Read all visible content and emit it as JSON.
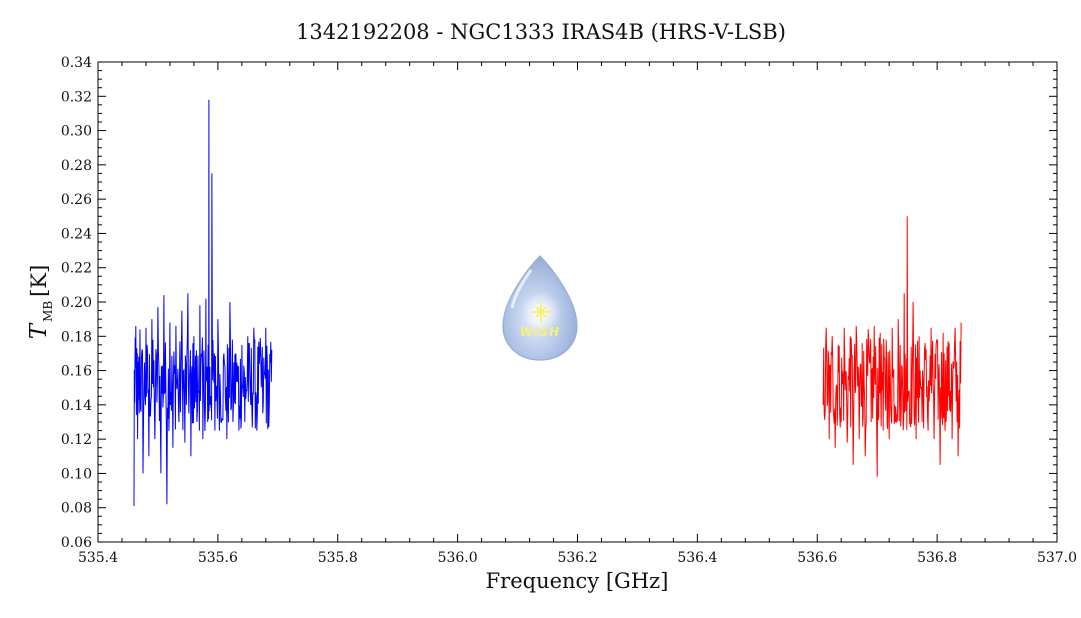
{
  "chart_data": {
    "type": "line",
    "title": "1342192208 - NGC1333 IRAS4B (HRS-V-LSB)",
    "xlabel": "Frequency [GHz]",
    "ylabel_main": "T",
    "ylabel_sub": "MB",
    "ylabel_unit": "[K]",
    "xlim": [
      535.4,
      537.0
    ],
    "ylim": [
      0.06,
      0.34
    ],
    "xticks": [
      "535.4",
      "535.6",
      "535.8",
      "536.0",
      "536.2",
      "536.4",
      "536.6",
      "536.8",
      "537.0"
    ],
    "yticks": [
      "0.06",
      "0.08",
      "0.10",
      "0.12",
      "0.14",
      "0.16",
      "0.18",
      "0.20",
      "0.22",
      "0.24",
      "0.26",
      "0.28",
      "0.30",
      "0.32",
      "0.34"
    ],
    "grid": false,
    "series": [
      {
        "color": "#0000ff",
        "x": [
          535.46,
          535.463,
          535.466,
          535.47,
          535.475,
          535.48,
          535.485,
          535.49,
          535.495,
          535.5,
          535.505,
          535.51,
          535.515,
          535.52,
          535.525,
          535.53,
          535.535,
          535.54,
          535.545,
          535.55,
          535.555,
          535.56,
          535.565,
          535.57,
          535.575,
          535.58,
          535.583,
          535.585,
          535.587,
          535.59,
          535.595,
          535.6,
          535.605,
          535.61,
          535.615,
          535.62,
          535.625,
          535.63,
          535.635,
          535.64,
          535.645,
          535.65,
          535.655,
          535.66,
          535.665,
          535.67,
          535.675,
          535.68,
          535.685,
          535.69
        ],
        "y": [
          0.081,
          0.186,
          0.12,
          0.184,
          0.1,
          0.185,
          0.11,
          0.19,
          0.12,
          0.197,
          0.1,
          0.204,
          0.082,
          0.188,
          0.115,
          0.186,
          0.13,
          0.195,
          0.118,
          0.205,
          0.11,
          0.18,
          0.13,
          0.198,
          0.12,
          0.202,
          0.13,
          0.318,
          0.14,
          0.275,
          0.125,
          0.19,
          0.13,
          0.17,
          0.12,
          0.2,
          0.13,
          0.17,
          0.125,
          0.175,
          0.13,
          0.18,
          0.14,
          0.185,
          0.125,
          0.17,
          0.135,
          0.185,
          0.127,
          0.172
        ]
      },
      {
        "color": "#ff0000",
        "x": [
          536.61,
          536.615,
          536.62,
          536.625,
          536.63,
          536.635,
          536.64,
          536.645,
          536.65,
          536.655,
          536.66,
          536.665,
          536.67,
          536.675,
          536.68,
          536.685,
          536.69,
          536.695,
          536.7,
          536.705,
          536.71,
          536.715,
          536.72,
          536.725,
          536.73,
          536.735,
          536.74,
          536.745,
          536.748,
          536.75,
          536.755,
          536.76,
          536.765,
          536.77,
          536.775,
          536.78,
          536.785,
          536.79,
          536.795,
          536.8,
          536.805,
          536.81,
          536.815,
          536.82,
          536.825,
          536.83,
          536.835,
          536.84
        ],
        "y": [
          0.14,
          0.185,
          0.12,
          0.18,
          0.115,
          0.175,
          0.13,
          0.185,
          0.118,
          0.18,
          0.105,
          0.186,
          0.12,
          0.176,
          0.11,
          0.184,
          0.13,
          0.186,
          0.098,
          0.182,
          0.125,
          0.178,
          0.12,
          0.185,
          0.13,
          0.19,
          0.135,
          0.205,
          0.14,
          0.25,
          0.13,
          0.2,
          0.12,
          0.18,
          0.13,
          0.176,
          0.125,
          0.185,
          0.12,
          0.178,
          0.105,
          0.182,
          0.13,
          0.176,
          0.12,
          0.185,
          0.11,
          0.188
        ]
      }
    ]
  },
  "logo": {
    "text": "WISH",
    "color": "#a9bde0",
    "star_color": "#f4f07a"
  }
}
